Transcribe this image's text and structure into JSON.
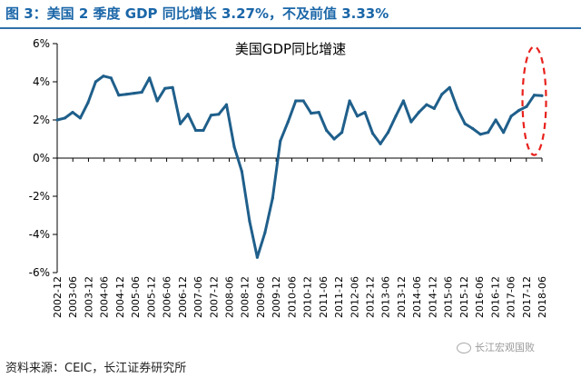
{
  "figure": {
    "title": "图 3：美国 2 季度 GDP 同比增长 3.27%，不及前值 3.33%",
    "source": "资料来源：CEIC，长江证券研究所",
    "watermark": "长江宏观国败"
  },
  "chart_data": {
    "type": "line",
    "title": "美国GDP同比增速",
    "xlabel": "",
    "ylabel": "",
    "ylim": [
      -6,
      6
    ],
    "yticks": [
      "6%",
      "4%",
      "2%",
      "0%",
      "-2%",
      "-4%",
      "-6%"
    ],
    "grid": false,
    "line_color": "#1f5f8b",
    "highlight_color": "#e8211c",
    "tick_labels": [
      "2002-12",
      "2003-06",
      "2003-12",
      "2004-06",
      "2004-12",
      "2005-06",
      "2005-12",
      "2006-06",
      "2006-12",
      "2007-06",
      "2007-12",
      "2008-06",
      "2008-12",
      "2009-06",
      "2009-12",
      "2010-06",
      "2010-12",
      "2011-06",
      "2011-12",
      "2012-06",
      "2012-12",
      "2013-06",
      "2013-12",
      "2014-06",
      "2014-12",
      "2015-06",
      "2015-12",
      "2016-06",
      "2016-12",
      "2017-06",
      "2017-12",
      "2018-06"
    ],
    "series": [
      {
        "values": [
          2.0,
          2.1,
          2.4,
          2.1,
          2.9,
          4.0,
          4.3,
          4.2,
          3.3,
          3.35,
          3.4,
          3.45,
          4.2,
          3.0,
          3.65,
          3.7,
          1.8,
          2.3,
          1.45,
          1.45,
          2.25,
          2.3,
          2.8,
          0.6,
          -0.7,
          -3.3,
          -5.2,
          -3.9,
          -2.1,
          0.9,
          1.9,
          3.0,
          3.0,
          2.35,
          2.4,
          1.45,
          1.0,
          1.35,
          3.0,
          2.2,
          2.4,
          1.3,
          0.75,
          1.35,
          2.2,
          3.0,
          1.9,
          2.4,
          2.8,
          2.6,
          3.35,
          3.7,
          2.6,
          1.8,
          1.55,
          1.25,
          1.35,
          2.0,
          1.35,
          2.2,
          2.5,
          2.7,
          3.3,
          3.27
        ]
      }
    ],
    "highlight": {
      "shape": "dashed-ellipse",
      "last_value": "3.27%"
    }
  }
}
